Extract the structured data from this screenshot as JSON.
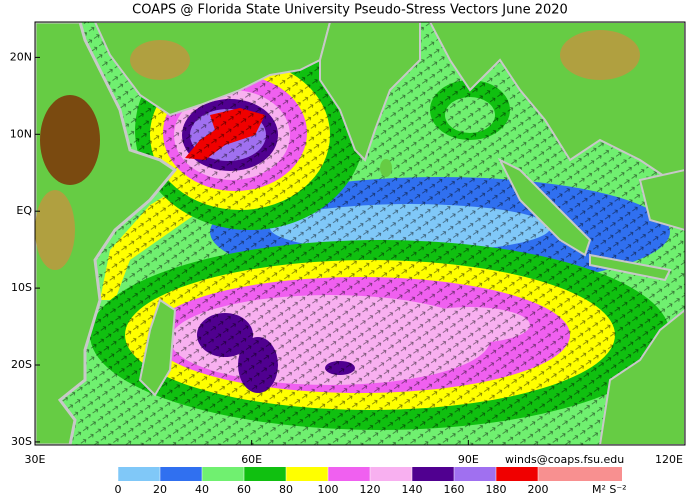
{
  "title": "COAPS @ Florida State University Pseudo-Stress Vectors June 2020",
  "map": {
    "xlim": [
      30,
      120
    ],
    "ylim": [
      -30.4,
      24.6
    ],
    "xticks": [
      {
        "value": 30,
        "label": "30E"
      },
      {
        "value": 60,
        "label": "60E"
      },
      {
        "value": 90,
        "label": "90E"
      },
      {
        "value": 120,
        "label": "120E"
      }
    ],
    "yticks": [
      {
        "value": 20,
        "label": "20N"
      },
      {
        "value": 10,
        "label": "10N"
      },
      {
        "value": 0,
        "label": "EQ"
      },
      {
        "value": -10,
        "label": "10S"
      },
      {
        "value": -20,
        "label": "20S"
      },
      {
        "value": -30,
        "label": "30S"
      }
    ]
  },
  "credit": "winds@coaps.fsu.edu",
  "colorbar": {
    "ticks": [
      0,
      20,
      40,
      60,
      80,
      100,
      120,
      140,
      160,
      180,
      200
    ],
    "colors": [
      "#80c8f8",
      "#3070f0",
      "#70f070",
      "#10c010",
      "#ffff00",
      "#f060f0",
      "#f8b0f0",
      "#500090",
      "#a070f0",
      "#f00000",
      "#f89090",
      "#f89090"
    ],
    "unit": "M² S⁻²"
  }
}
